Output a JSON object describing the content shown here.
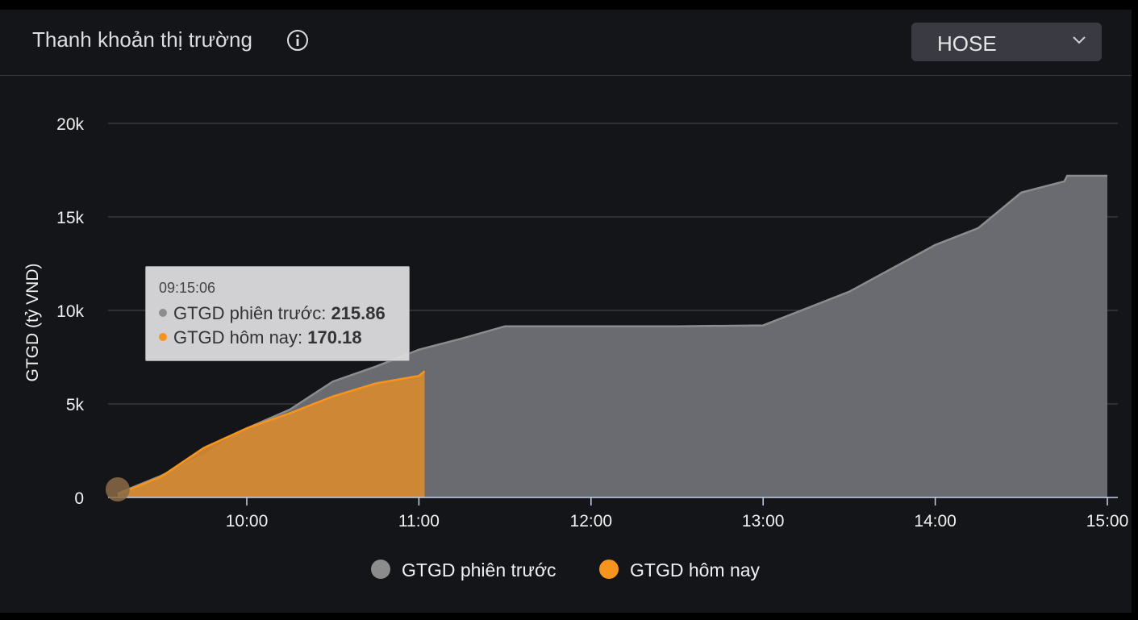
{
  "header": {
    "title": "Thanh khoản thị trường",
    "info_icon": "info-circle-icon",
    "exchange_select": {
      "value": "HOSE",
      "icon": "chevron-down-icon"
    }
  },
  "tooltip": {
    "time": "09:15:06",
    "rows": [
      {
        "label": "GTGD phiên trước:",
        "value": "215.86",
        "color": "#8c8c8c"
      },
      {
        "label": "GTGD hôm nay:",
        "value": "170.18",
        "color": "#f7941d"
      }
    ]
  },
  "chart_data": {
    "type": "area",
    "title": "",
    "xlabel": "",
    "ylabel": "GTGD (tỷ VND)",
    "x_ticks": [
      "10:00",
      "11:00",
      "12:00",
      "13:00",
      "14:00",
      "15:00"
    ],
    "y_ticks": [
      "0",
      "5k",
      "10k",
      "15k",
      "20k"
    ],
    "xlim": [
      "09:15",
      "15:00"
    ],
    "ylim": [
      0,
      20000
    ],
    "grid": true,
    "legend_position": "bottom",
    "series": [
      {
        "name": "GTGD phiên trước",
        "color": "#6a6b70",
        "line_color": "#8c8c8c",
        "legend_color": "#8c8c8c",
        "points": [
          [
            "09:15",
            216
          ],
          [
            "09:30",
            1150
          ],
          [
            "09:45",
            2250
          ],
          [
            "10:00",
            3700
          ],
          [
            "10:15",
            4700
          ],
          [
            "10:30",
            6200
          ],
          [
            "10:45",
            7000
          ],
          [
            "11:00",
            7900
          ],
          [
            "11:15",
            8500
          ],
          [
            "11:30",
            9150
          ],
          [
            "12:00",
            9150
          ],
          [
            "12:30",
            9150
          ],
          [
            "13:00",
            9200
          ],
          [
            "13:30",
            11000
          ],
          [
            "14:00",
            13500
          ],
          [
            "14:15",
            14400
          ],
          [
            "14:30",
            16300
          ],
          [
            "14:45",
            16900
          ],
          [
            "14:46",
            17200
          ],
          [
            "15:00",
            17200
          ]
        ]
      },
      {
        "name": "GTGD hôm nay",
        "color": "#d38932",
        "line_color": "#f7941d",
        "legend_color": "#f7941d",
        "points": [
          [
            "09:15",
            170
          ],
          [
            "09:30",
            1100
          ],
          [
            "09:45",
            2650
          ],
          [
            "10:00",
            3700
          ],
          [
            "10:15",
            4500
          ],
          [
            "10:30",
            5400
          ],
          [
            "10:45",
            6100
          ],
          [
            "11:00",
            6500
          ],
          [
            "11:02",
            6750
          ]
        ]
      }
    ]
  }
}
